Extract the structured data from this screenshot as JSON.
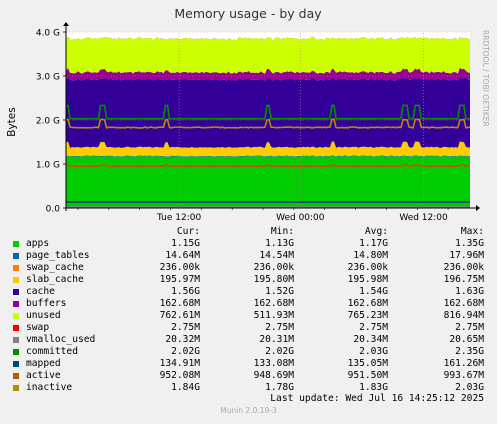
{
  "chart_data": {
    "type": "area",
    "title": "Memory usage - by day",
    "ylabel": "Bytes",
    "ylim": [
      0,
      4.0
    ],
    "y_unit": "G",
    "yticks": [
      {
        "v": 0,
        "label": "0.0"
      },
      {
        "v": 1,
        "label": "1.0 G"
      },
      {
        "v": 2,
        "label": "2.0 G"
      },
      {
        "v": 3,
        "label": "3.0 G"
      },
      {
        "v": 4,
        "label": "4.0 G"
      }
    ],
    "xticks": [
      {
        "x": 0.28,
        "label": "Tue 12:00"
      },
      {
        "x": 0.58,
        "label": "Wed 00:00"
      },
      {
        "x": 0.885,
        "label": "Wed 12:00"
      }
    ],
    "side_label": "RRDTOOL / TOBI OETIKER",
    "stack_series": [
      {
        "name": "apps",
        "color": "#00cc00",
        "avg": 1.17
      },
      {
        "name": "page_tables",
        "color": "#0066b3",
        "avg": 0.0148
      },
      {
        "name": "swap_cache",
        "color": "#ff8000",
        "avg": 0.000236
      },
      {
        "name": "slab_cache",
        "color": "#ffcc00",
        "avg": 0.196
      },
      {
        "name": "cache",
        "color": "#330099",
        "avg": 1.54
      },
      {
        "name": "buffers",
        "color": "#990099",
        "avg": 0.163
      },
      {
        "name": "unused",
        "color": "#ccff00",
        "avg": 0.765
      },
      {
        "name": "swap",
        "color": "#ff0000",
        "avg": 0.00275
      }
    ],
    "line_series": [
      {
        "name": "vmalloc_used",
        "color": "#808080",
        "avg": 0.0203
      },
      {
        "name": "committed",
        "color": "#008f00",
        "avg": 2.03
      },
      {
        "name": "mapped",
        "color": "#00487d",
        "avg": 0.135
      },
      {
        "name": "active",
        "color": "#b35a00",
        "avg": 0.95
      },
      {
        "name": "inactive",
        "color": "#b38f00",
        "avg": 1.83
      }
    ],
    "spikes_at": [
      0.0,
      0.09,
      0.25,
      0.5,
      0.66,
      0.84,
      0.87,
      0.98
    ]
  },
  "legend": {
    "headers": {
      "cur": "Cur:",
      "min": "Min:",
      "avg": "Avg:",
      "max": "Max:"
    },
    "rows": [
      {
        "name": "apps",
        "color": "#00cc00",
        "cur": "1.15G",
        "min": "1.13G",
        "avg": "1.17G",
        "max": "1.35G"
      },
      {
        "name": "page_tables",
        "color": "#0066b3",
        "cur": "14.64M",
        "min": "14.54M",
        "avg": "14.80M",
        "max": "17.96M"
      },
      {
        "name": "swap_cache",
        "color": "#ff8000",
        "cur": "236.00k",
        "min": "236.00k",
        "avg": "236.00k",
        "max": "236.00k"
      },
      {
        "name": "slab_cache",
        "color": "#ffcc00",
        "cur": "195.97M",
        "min": "195.80M",
        "avg": "195.98M",
        "max": "196.75M"
      },
      {
        "name": "cache",
        "color": "#330099",
        "cur": "1.56G",
        "min": "1.52G",
        "avg": "1.54G",
        "max": "1.63G"
      },
      {
        "name": "buffers",
        "color": "#990099",
        "cur": "162.68M",
        "min": "162.68M",
        "avg": "162.68M",
        "max": "162.68M"
      },
      {
        "name": "unused",
        "color": "#ccff00",
        "cur": "762.61M",
        "min": "511.93M",
        "avg": "765.23M",
        "max": "816.94M"
      },
      {
        "name": "swap",
        "color": "#ff0000",
        "cur": "2.75M",
        "min": "2.75M",
        "avg": "2.75M",
        "max": "2.75M"
      },
      {
        "name": "vmalloc_used",
        "color": "#808080",
        "cur": "20.32M",
        "min": "20.31M",
        "avg": "20.34M",
        "max": "20.65M"
      },
      {
        "name": "committed",
        "color": "#008f00",
        "cur": "2.02G",
        "min": "2.02G",
        "avg": "2.03G",
        "max": "2.35G"
      },
      {
        "name": "mapped",
        "color": "#00487d",
        "cur": "134.91M",
        "min": "133.08M",
        "avg": "135.05M",
        "max": "161.26M"
      },
      {
        "name": "active",
        "color": "#b35a00",
        "cur": "952.08M",
        "min": "948.69M",
        "avg": "951.50M",
        "max": "993.67M"
      },
      {
        "name": "inactive",
        "color": "#b38f00",
        "cur": "1.84G",
        "min": "1.78G",
        "avg": "1.83G",
        "max": "2.03G"
      }
    ]
  },
  "footer": {
    "last_update": "Last update: Wed Jul 16 14:25:12 2025",
    "version": "Munin 2.0.19-3"
  }
}
